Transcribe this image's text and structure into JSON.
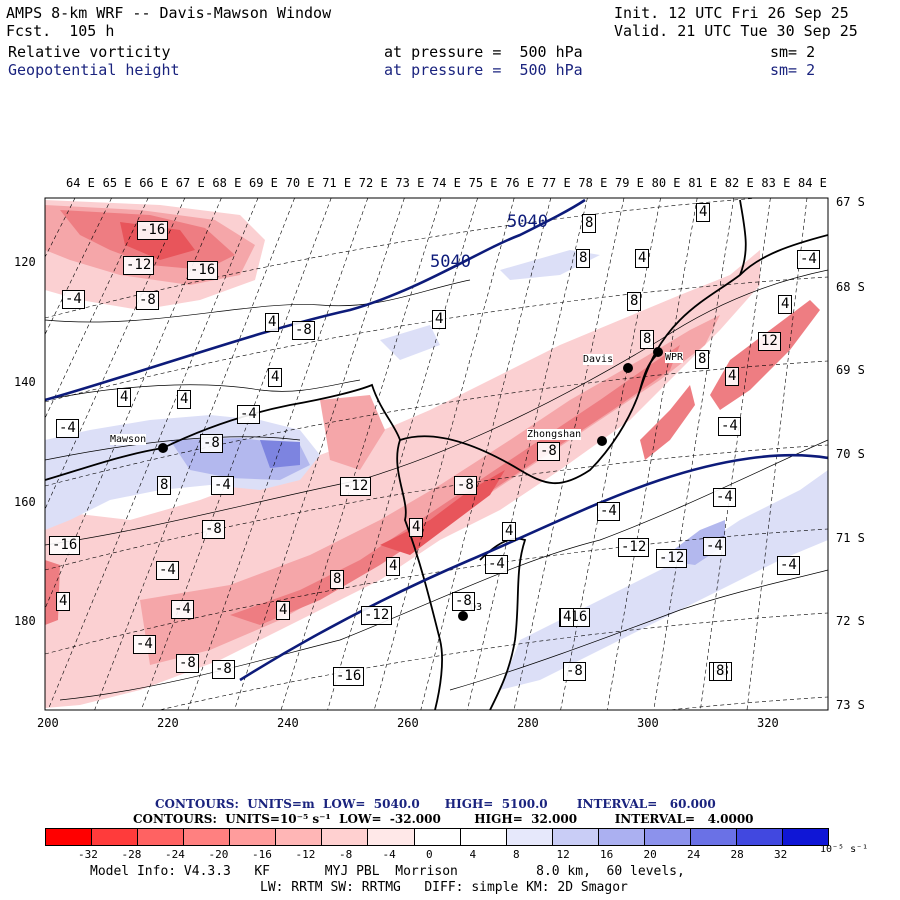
{
  "header": {
    "title": "AMPS 8-km WRF -- Davis-Mawson Window",
    "forecast": "Fcst.  105 h",
    "init": "Init. 12 UTC Fri 26 Sep 25",
    "valid": "Valid. 21 UTC Tue 30 Sep 25",
    "field1": {
      "name": "Relative vorticity",
      "level": "at pressure =  500 hPa",
      "smooth": "sm= 2"
    },
    "field2": {
      "name": "Geopotential height",
      "level": "at pressure =  500 hPa",
      "smooth": "sm= 2"
    }
  },
  "map": {
    "lon_labels": [
      "64 E",
      "65 E",
      "66 E",
      "67 E",
      "68 E",
      "69 E",
      "70 E",
      "71 E",
      "72 E",
      "73 E",
      "74 E",
      "75 E",
      "76 E",
      "77 E",
      "78 E",
      "79 E",
      "80 E",
      "81 E",
      "82 E",
      "83 E",
      "84 E"
    ],
    "lat_labels": [
      "67 S",
      "68 S",
      "69 S",
      "70 S",
      "71 S",
      "72 S",
      "73 S"
    ],
    "y_ticks": [
      "120",
      "140",
      "160",
      "180"
    ],
    "x_ticks": [
      "200",
      "220",
      "240",
      "260",
      "280",
      "300",
      "320"
    ],
    "stations": [
      {
        "name": "Mawson"
      },
      {
        "name": "Davis"
      },
      {
        "name": "Zhongshan"
      },
      {
        "name": "WPR"
      },
      {
        "name": "D3"
      }
    ],
    "height_labels": [
      "5040",
      "5040"
    ],
    "vort_labels": [
      "-16",
      "-12",
      "-16",
      "-4",
      "-8",
      "4",
      "-8",
      "4",
      "8",
      "8",
      "4",
      "-4",
      "4",
      "4",
      "4",
      "-4",
      "-4",
      "-8",
      "8",
      "-4",
      "-8",
      "-16",
      "-12",
      "-8",
      "-4",
      "-4",
      "4",
      "-4",
      "-8",
      "-8",
      "-16",
      "-12",
      "-12",
      "-4",
      "-4",
      "-8",
      "-8",
      "-4",
      "-4",
      "-4",
      "8",
      "4",
      "8",
      "8",
      "12",
      "4",
      "4",
      "4",
      "4",
      "8",
      "4",
      "-12",
      "-16",
      "-8",
      "-4",
      "-8",
      "4",
      "4",
      "8"
    ],
    "colors": {
      "height_contour": "#0d1b7a",
      "red_strong": "#e8444a",
      "red_mid": "#f2858a",
      "red_light": "#fbd0d2",
      "blue_light": "#dcdff7",
      "blue_mid": "#b3b8ee",
      "blue_strong": "#7d84e0"
    }
  },
  "contour_info": {
    "line1": "CONTOURS:  UNITS=m  LOW=  5040.0      HIGH=  5100.0       INTERVAL=   60.000",
    "line2": "CONTOURS:  UNITS=10⁻⁵ s⁻¹  LOW=  -32.000        HIGH=  32.000         INTERVAL=   4.0000"
  },
  "colorbar": {
    "labels": [
      "-32",
      "-28",
      "-24",
      "-20",
      "-16",
      "-12",
      "-8",
      "-4",
      "0",
      "4",
      "8",
      "12",
      "16",
      "20",
      "24",
      "28",
      "32"
    ],
    "unit": "10⁻⁵ s⁻¹",
    "colors": [
      "#ff0000",
      "#ff3b3b",
      "#ff6262",
      "#ff8080",
      "#ff9c9c",
      "#ffb6b6",
      "#ffd0d0",
      "#ffe8e8",
      "#ffffff",
      "#ffffff",
      "#e6e8fb",
      "#c9cdf6",
      "#abb0f1",
      "#8c92ec",
      "#6a71e6",
      "#4148e0",
      "#0f16d6"
    ]
  },
  "footer": {
    "line1": "Model Info: V4.3.3   KF       MYJ PBL  Morrison          8.0 km,  60 levels,",
    "line2": "LW: RRTM SW: RRTMG   DIFF: simple KM: 2D Smagor"
  }
}
